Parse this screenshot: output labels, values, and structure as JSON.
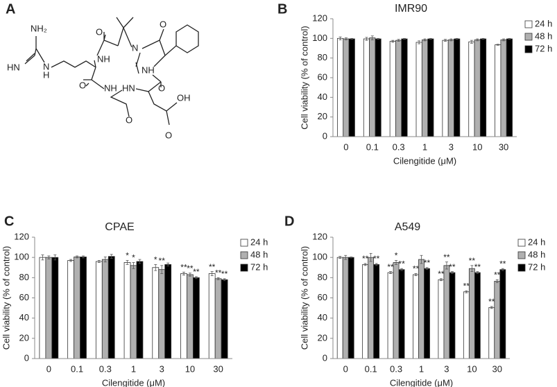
{
  "panels": [
    "A",
    "B",
    "C",
    "D"
  ],
  "structure": {
    "atoms": [
      "NH₂",
      "HN",
      "N",
      "H",
      "NH",
      "O",
      "N",
      "O",
      "NH",
      "O",
      "NH",
      "HN",
      "O",
      "O",
      "OH",
      "O"
    ]
  },
  "chart_data": [
    {
      "type": "bar",
      "title": "IMR90",
      "x_label": "Cilengitide (μM)",
      "y_label": "Cell viability (% of control)",
      "categories": [
        "0",
        "0.1",
        "0.3",
        "1",
        "3",
        "10",
        "30"
      ],
      "series": [
        {
          "name": "24 h",
          "color": "#ffffff",
          "values": [
            100,
            99.5,
            97,
            96,
            98,
            96.5,
            93.5
          ],
          "errors": [
            1.5,
            1.5,
            1,
            1.5,
            1,
            1.5,
            0.5
          ],
          "significance": [
            null,
            null,
            null,
            null,
            null,
            null,
            null
          ]
        },
        {
          "name": "48 h",
          "color": "#b0b0b0",
          "values": [
            99.5,
            100.5,
            98,
            98.5,
            98.5,
            98.5,
            98.5
          ],
          "errors": [
            1,
            2,
            1,
            1,
            1,
            1,
            1
          ],
          "significance": [
            null,
            null,
            null,
            null,
            null,
            null,
            null
          ]
        },
        {
          "name": "72 h",
          "color": "#000000",
          "values": [
            99.5,
            99.5,
            99.5,
            99.5,
            99.5,
            99.5,
            99.5
          ],
          "errors": [
            0.5,
            0.5,
            0.5,
            0.5,
            0.5,
            0.5,
            0.5
          ],
          "significance": [
            null,
            null,
            null,
            null,
            null,
            null,
            null
          ]
        }
      ],
      "ylim": [
        0,
        120
      ],
      "yticks": [
        0,
        20,
        40,
        60,
        80,
        100,
        120
      ],
      "legend": "right"
    },
    {
      "type": "bar",
      "title": "CPAE",
      "x_label": "Cilengitide (μM)",
      "y_label": "Cell viability (% of control)",
      "categories": [
        "0",
        "0.1",
        "0.3",
        "1",
        "3",
        "10",
        "30"
      ],
      "series": [
        {
          "name": "24 h",
          "color": "#ffffff",
          "values": [
            100,
            97,
            96,
            95,
            90,
            84,
            84
          ],
          "errors": [
            2.5,
            1,
            1,
            2,
            3,
            1.5,
            2
          ],
          "significance": [
            null,
            null,
            null,
            "*",
            "*",
            "**",
            "**"
          ]
        },
        {
          "name": "48 h",
          "color": "#b0b0b0",
          "values": [
            100,
            100.5,
            98,
            92,
            88,
            83,
            79
          ],
          "errors": [
            1.5,
            1,
            2.5,
            3,
            4,
            1.5,
            1
          ],
          "significance": [
            null,
            null,
            null,
            "*",
            "**",
            "**",
            "**"
          ]
        },
        {
          "name": "72 h",
          "color": "#000000",
          "values": [
            100,
            100.5,
            101,
            96,
            93,
            80,
            78
          ],
          "errors": [
            2.5,
            1,
            2,
            2,
            1.5,
            1,
            1
          ],
          "significance": [
            null,
            null,
            null,
            null,
            null,
            "**",
            "**"
          ]
        }
      ],
      "ylim": [
        0,
        120
      ],
      "yticks": [
        0,
        20,
        40,
        60,
        80,
        100,
        120
      ],
      "legend": "right"
    },
    {
      "type": "bar",
      "title": "A549",
      "x_label": "Cilengitide (μM)",
      "y_label": "Cell viability (% of control)",
      "categories": [
        "0",
        "0.1",
        "0.3",
        "1",
        "3",
        "10",
        "30"
      ],
      "series": [
        {
          "name": "24 h",
          "color": "#ffffff",
          "values": [
            100,
            93,
            85,
            83,
            78,
            66,
            50.5
          ],
          "errors": [
            1,
            1,
            1,
            1,
            1,
            1,
            1
          ],
          "significance": [
            null,
            "**",
            "**",
            "**",
            "**",
            "**",
            "**"
          ]
        },
        {
          "name": "48 h",
          "color": "#b0b0b0",
          "values": [
            100,
            100,
            95,
            98,
            92,
            89,
            76.5
          ],
          "errors": [
            2,
            4,
            2,
            4,
            3.5,
            3,
            1.5
          ],
          "significance": [
            null,
            null,
            "*",
            null,
            "**",
            "**",
            "**"
          ]
        },
        {
          "name": "72 h",
          "color": "#000000",
          "values": [
            100,
            93,
            88,
            89,
            85,
            85,
            88
          ],
          "errors": [
            0.5,
            1,
            1,
            1,
            1,
            1,
            1
          ],
          "significance": [
            null,
            "**",
            "**",
            "**",
            "**",
            "**",
            "**"
          ]
        }
      ],
      "ylim": [
        0,
        120
      ],
      "yticks": [
        0,
        20,
        40,
        60,
        80,
        100,
        120
      ],
      "legend": "right"
    }
  ]
}
